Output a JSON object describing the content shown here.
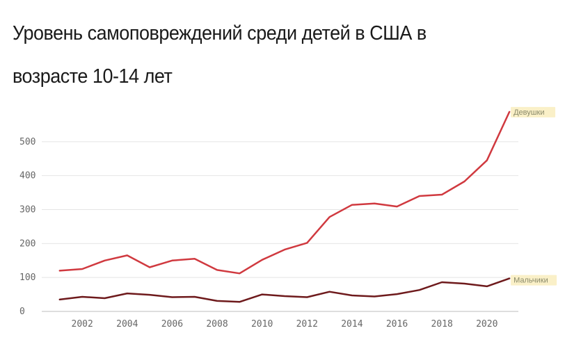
{
  "title_line_1": "Уровень самоповреждений среди детей в США в",
  "title_line_2": "возрасте 10-14 лет",
  "chart_data": {
    "type": "line",
    "title": "Уровень самоповреждений среди детей в США в возрасте 10-14 лет",
    "xlabel": "",
    "ylabel": "",
    "x": [
      2001,
      2002,
      2003,
      2004,
      2005,
      2006,
      2007,
      2008,
      2009,
      2010,
      2011,
      2012,
      2013,
      2014,
      2015,
      2016,
      2017,
      2018,
      2019,
      2020,
      2021
    ],
    "xticks": [
      2002,
      2004,
      2006,
      2008,
      2010,
      2012,
      2014,
      2016,
      2018,
      2020
    ],
    "yticks": [
      0,
      100,
      200,
      300,
      400,
      500
    ],
    "xlim": [
      2000.2,
      2021.4
    ],
    "ylim": [
      0,
      600
    ],
    "grid": "horizontal",
    "series": [
      {
        "name": "Девушки",
        "color": "#d0393f",
        "values": [
          120,
          125,
          150,
          165,
          130,
          150,
          155,
          122,
          112,
          152,
          182,
          202,
          278,
          314,
          318,
          309,
          340,
          344,
          383,
          445,
          588
        ]
      },
      {
        "name": "Мальчики",
        "color": "#6e1a1c",
        "values": [
          35,
          43,
          39,
          53,
          49,
          42,
          43,
          31,
          28,
          50,
          45,
          42,
          58,
          47,
          44,
          51,
          63,
          86,
          82,
          74,
          97
        ]
      }
    ],
    "label_bg_color": "#faf0c8"
  }
}
